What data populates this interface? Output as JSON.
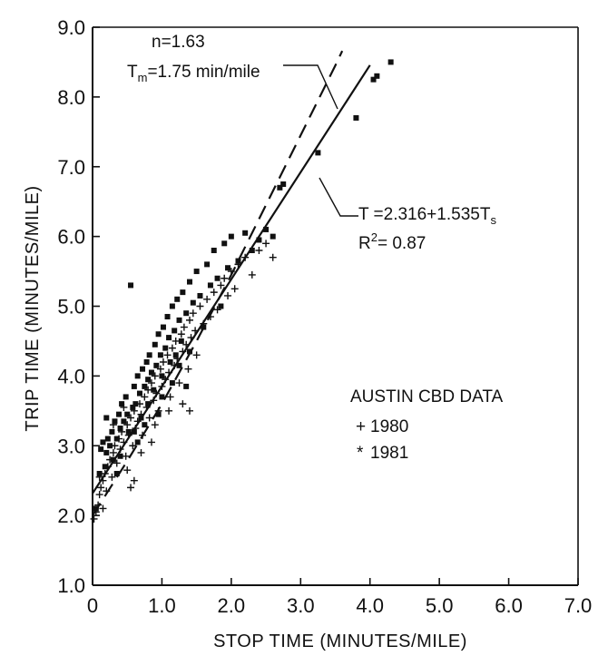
{
  "chart_data": {
    "type": "scatter",
    "xlabel": "STOP TIME (MINUTES/MILE)",
    "ylabel": "TRIP TIME (MINUTES/MILE)",
    "xlim": [
      0,
      7
    ],
    "ylim": [
      1,
      9
    ],
    "x_ticks": [
      0,
      1,
      2,
      3,
      4,
      5,
      6,
      7
    ],
    "x_tick_labels": [
      "0",
      "1.0",
      "2.0",
      "3.0",
      "4.0",
      "5.0",
      "6.0",
      "7.0"
    ],
    "y_ticks": [
      1,
      2,
      3,
      4,
      5,
      6,
      7,
      8,
      9
    ],
    "y_tick_labels": [
      "1.0",
      "2.0",
      "3.0",
      "4.0",
      "5.0",
      "6.0",
      "7.0",
      "8.0",
      "9.0"
    ],
    "grid": false,
    "legend": {
      "title": "AUSTIN CBD DATA",
      "placement": "right-center",
      "entries": [
        {
          "symbol": "+",
          "label": "1980"
        },
        {
          "symbol": "*",
          "label": "1981"
        }
      ]
    },
    "annotations": {
      "two_fluid": {
        "line1": "n=1.63",
        "line2_main": "T",
        "line2_sub": "m",
        "line2_rest": "=1.75 min/mile"
      },
      "regression": {
        "line1_main": "T =2.316+1.535T",
        "line1_sub": "s",
        "line2_main": "R",
        "line2_sup": "2",
        "line2_rest": "= 0.87"
      }
    },
    "fit_lines": [
      {
        "style": "solid",
        "intercept": 2.316,
        "slope": 1.535,
        "x_range": [
          0,
          4.0
        ]
      },
      {
        "style": "dashed",
        "points": [
          [
            0,
            2.0
          ],
          [
            0.5,
            2.78
          ],
          [
            1,
            3.6
          ],
          [
            1.5,
            4.5
          ],
          [
            2,
            5.45
          ],
          [
            2.5,
            6.45
          ],
          [
            3,
            7.45
          ],
          [
            3.5,
            8.45
          ],
          [
            3.6,
            8.66
          ]
        ]
      }
    ],
    "series": [
      {
        "name": "1980",
        "marker": "plus",
        "points": [
          [
            0.02,
            1.95
          ],
          [
            0.05,
            2.05
          ],
          [
            0.08,
            2.15
          ],
          [
            0.1,
            2.3
          ],
          [
            0.12,
            2.4
          ],
          [
            0.15,
            2.5
          ],
          [
            0.18,
            2.6
          ],
          [
            0.2,
            2.35
          ],
          [
            0.22,
            2.7
          ],
          [
            0.25,
            2.8
          ],
          [
            0.28,
            2.55
          ],
          [
            0.3,
            2.9
          ],
          [
            0.32,
            3.0
          ],
          [
            0.35,
            2.75
          ],
          [
            0.38,
            3.1
          ],
          [
            0.4,
            2.95
          ],
          [
            0.42,
            3.2
          ],
          [
            0.45,
            3.05
          ],
          [
            0.48,
            2.85
          ],
          [
            0.5,
            3.3
          ],
          [
            0.52,
            3.15
          ],
          [
            0.55,
            3.4
          ],
          [
            0.58,
            3.0
          ],
          [
            0.6,
            3.5
          ],
          [
            0.62,
            3.25
          ],
          [
            0.65,
            3.35
          ],
          [
            0.68,
            3.6
          ],
          [
            0.7,
            3.45
          ],
          [
            0.72,
            3.15
          ],
          [
            0.75,
            3.7
          ],
          [
            0.78,
            3.55
          ],
          [
            0.8,
            3.8
          ],
          [
            0.82,
            3.4
          ],
          [
            0.85,
            3.9
          ],
          [
            0.88,
            3.65
          ],
          [
            0.9,
            4.0
          ],
          [
            0.92,
            3.75
          ],
          [
            0.95,
            3.5
          ],
          [
            0.98,
            4.1
          ],
          [
            1.0,
            3.85
          ],
          [
            1.02,
            4.2
          ],
          [
            1.05,
            3.95
          ],
          [
            1.08,
            4.3
          ],
          [
            1.1,
            4.05
          ],
          [
            1.12,
            3.7
          ],
          [
            1.15,
            4.4
          ],
          [
            1.18,
            4.15
          ],
          [
            1.2,
            4.5
          ],
          [
            1.22,
            4.25
          ],
          [
            1.25,
            3.9
          ],
          [
            1.28,
            4.6
          ],
          [
            1.3,
            4.35
          ],
          [
            1.32,
            4.7
          ],
          [
            1.35,
            4.45
          ],
          [
            1.38,
            4.1
          ],
          [
            1.4,
            4.8
          ],
          [
            1.42,
            4.55
          ],
          [
            1.45,
            4.9
          ],
          [
            1.48,
            4.65
          ],
          [
            1.5,
            4.3
          ],
          [
            1.55,
            5.0
          ],
          [
            1.6,
            4.75
          ],
          [
            1.65,
            5.1
          ],
          [
            1.7,
            4.85
          ],
          [
            1.75,
            5.2
          ],
          [
            1.8,
            4.95
          ],
          [
            1.85,
            5.3
          ],
          [
            1.9,
            5.4
          ],
          [
            1.95,
            5.15
          ],
          [
            2.0,
            5.5
          ],
          [
            2.05,
            5.25
          ],
          [
            2.1,
            5.6
          ],
          [
            2.2,
            5.7
          ],
          [
            2.3,
            5.45
          ],
          [
            2.4,
            5.8
          ],
          [
            2.5,
            5.9
          ],
          [
            2.6,
            5.7
          ],
          [
            0.3,
            3.3
          ],
          [
            0.5,
            2.65
          ],
          [
            0.7,
            2.9
          ],
          [
            0.9,
            3.3
          ],
          [
            1.1,
            3.5
          ],
          [
            0.6,
            2.5
          ],
          [
            0.85,
            3.05
          ],
          [
            1.3,
            3.6
          ],
          [
            1.4,
            3.5
          ],
          [
            0.15,
            2.1
          ],
          [
            0.1,
            2.55
          ],
          [
            0.45,
            3.55
          ],
          [
            0.55,
            2.4
          ]
        ]
      },
      {
        "name": "1981",
        "marker": "asterisk",
        "points": [
          [
            0.05,
            2.1
          ],
          [
            0.1,
            2.6
          ],
          [
            0.12,
            2.95
          ],
          [
            0.15,
            3.05
          ],
          [
            0.18,
            2.7
          ],
          [
            0.2,
            2.9
          ],
          [
            0.22,
            3.1
          ],
          [
            0.25,
            3.0
          ],
          [
            0.28,
            3.2
          ],
          [
            0.3,
            2.8
          ],
          [
            0.32,
            3.35
          ],
          [
            0.35,
            3.1
          ],
          [
            0.38,
            3.45
          ],
          [
            0.4,
            3.25
          ],
          [
            0.42,
            3.6
          ],
          [
            0.45,
            3.35
          ],
          [
            0.48,
            3.7
          ],
          [
            0.5,
            3.45
          ],
          [
            0.52,
            3.2
          ],
          [
            0.55,
            5.3
          ],
          [
            0.58,
            3.55
          ],
          [
            0.6,
            3.85
          ],
          [
            0.62,
            3.6
          ],
          [
            0.65,
            4.0
          ],
          [
            0.68,
            3.75
          ],
          [
            0.7,
            3.4
          ],
          [
            0.72,
            4.1
          ],
          [
            0.75,
            3.85
          ],
          [
            0.78,
            4.2
          ],
          [
            0.8,
            3.6
          ],
          [
            0.82,
            4.3
          ],
          [
            0.85,
            4.05
          ],
          [
            0.88,
            3.8
          ],
          [
            0.9,
            4.45
          ],
          [
            0.92,
            4.15
          ],
          [
            0.95,
            4.6
          ],
          [
            0.98,
            4.3
          ],
          [
            1.0,
            4.0
          ],
          [
            1.02,
            4.7
          ],
          [
            1.05,
            4.4
          ],
          [
            1.08,
            4.85
          ],
          [
            1.1,
            4.55
          ],
          [
            1.12,
            4.2
          ],
          [
            1.15,
            5.0
          ],
          [
            1.18,
            4.65
          ],
          [
            1.2,
            4.3
          ],
          [
            1.22,
            5.1
          ],
          [
            1.25,
            4.8
          ],
          [
            1.28,
            4.5
          ],
          [
            1.3,
            5.2
          ],
          [
            1.35,
            4.9
          ],
          [
            1.4,
            5.35
          ],
          [
            1.45,
            5.05
          ],
          [
            1.5,
            5.5
          ],
          [
            1.55,
            5.15
          ],
          [
            1.6,
            4.7
          ],
          [
            1.65,
            5.6
          ],
          [
            1.7,
            5.3
          ],
          [
            1.75,
            5.8
          ],
          [
            1.8,
            5.4
          ],
          [
            1.85,
            5.0
          ],
          [
            1.9,
            5.9
          ],
          [
            1.95,
            5.55
          ],
          [
            2.0,
            6.0
          ],
          [
            2.1,
            5.65
          ],
          [
            2.2,
            6.05
          ],
          [
            2.3,
            5.8
          ],
          [
            2.4,
            5.95
          ],
          [
            2.5,
            6.1
          ],
          [
            2.6,
            6.0
          ],
          [
            2.7,
            6.7
          ],
          [
            2.75,
            6.75
          ],
          [
            3.25,
            7.2
          ],
          [
            3.8,
            7.7
          ],
          [
            4.05,
            8.25
          ],
          [
            4.1,
            8.3
          ],
          [
            4.3,
            8.5
          ],
          [
            0.6,
            3.2
          ],
          [
            0.8,
            3.95
          ],
          [
            1.0,
            3.7
          ],
          [
            0.4,
            2.85
          ],
          [
            0.2,
            3.4
          ],
          [
            0.65,
            3.05
          ],
          [
            1.15,
            3.9
          ],
          [
            1.4,
            4.35
          ],
          [
            1.25,
            4.15
          ],
          [
            0.35,
            2.6
          ],
          [
            0.75,
            3.3
          ],
          [
            0.95,
            3.45
          ],
          [
            1.35,
            3.85
          ]
        ]
      }
    ]
  }
}
